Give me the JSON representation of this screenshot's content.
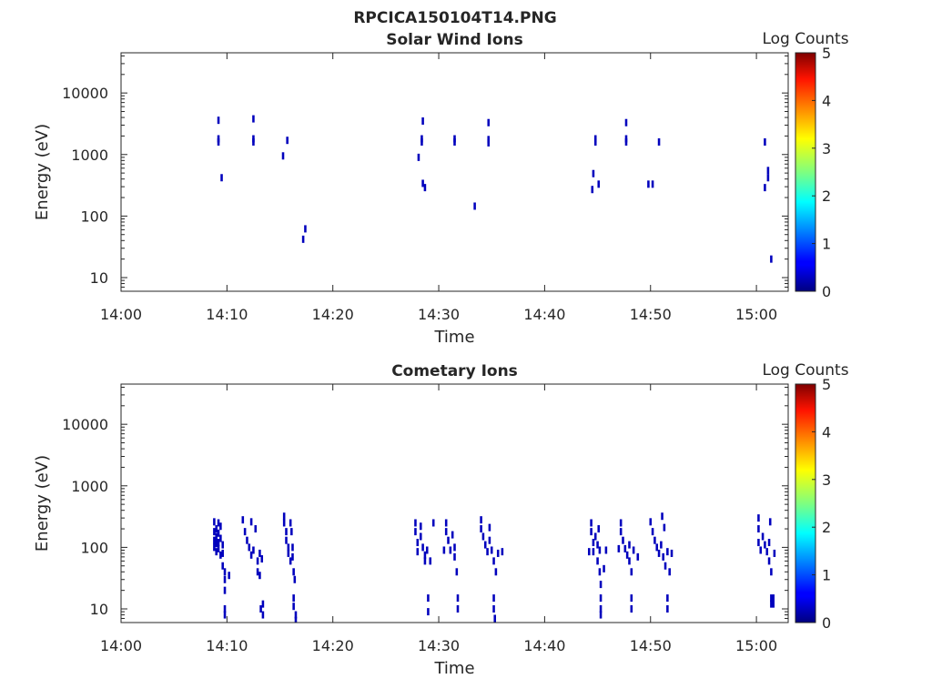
{
  "figure": {
    "title": "RPCICA150104T14.PNG"
  },
  "chart_data": [
    {
      "type": "heatmap",
      "title": "Solar Wind Ions",
      "xlabel": "Time",
      "ylabel": "Energy (eV)",
      "y_scale": "log",
      "xlim": [
        "14:00",
        "15:03"
      ],
      "ylim": [
        6,
        45000
      ],
      "x_ticks": [
        "14:00",
        "14:10",
        "14:20",
        "14:30",
        "14:40",
        "14:50",
        "15:00"
      ],
      "y_ticks": [
        {
          "value": 10,
          "label": "10"
        },
        {
          "value": 100,
          "label": "100"
        },
        {
          "value": 1000,
          "label": "1000"
        },
        {
          "value": 10000,
          "label": "10000"
        }
      ],
      "colorbar": {
        "label": "Log Counts",
        "range": [
          0,
          5
        ],
        "ticks": [
          "0",
          "1",
          "2",
          "3",
          "4",
          "5"
        ],
        "colormap": "jet"
      },
      "cells": [
        [
          9.2,
          1600,
          0.3
        ],
        [
          9.2,
          1800,
          0.3
        ],
        [
          9.2,
          3600,
          0.3
        ],
        [
          9.5,
          420,
          0.3
        ],
        [
          12.5,
          1600,
          0.3
        ],
        [
          12.5,
          1800,
          0.3
        ],
        [
          12.5,
          3800,
          0.3
        ],
        [
          15.3,
          950,
          0.3
        ],
        [
          15.7,
          1700,
          0.3
        ],
        [
          17.2,
          42,
          0.3
        ],
        [
          17.4,
          62,
          0.3
        ],
        [
          28.1,
          900,
          0.3
        ],
        [
          28.4,
          1600,
          0.3
        ],
        [
          28.4,
          1800,
          0.3
        ],
        [
          28.5,
          3500,
          0.3
        ],
        [
          28.5,
          340,
          0.3
        ],
        [
          28.7,
          290,
          0.3
        ],
        [
          31.5,
          1600,
          0.3
        ],
        [
          31.5,
          1800,
          0.3
        ],
        [
          33.4,
          145,
          0.3
        ],
        [
          34.7,
          1550,
          0.3
        ],
        [
          34.7,
          1750,
          0.3
        ],
        [
          34.7,
          3300,
          0.3
        ],
        [
          44.5,
          270,
          0.3
        ],
        [
          44.6,
          490,
          0.3
        ],
        [
          44.8,
          1600,
          0.3
        ],
        [
          44.8,
          1800,
          0.3
        ],
        [
          45.1,
          330,
          0.3
        ],
        [
          47.7,
          1600,
          0.3
        ],
        [
          47.7,
          1800,
          0.3
        ],
        [
          47.7,
          3300,
          0.3
        ],
        [
          49.8,
          330,
          0.3
        ],
        [
          50.2,
          330,
          0.3
        ],
        [
          50.8,
          1600,
          0.3
        ],
        [
          60.8,
          1600,
          0.3
        ],
        [
          60.8,
          290,
          0.3
        ],
        [
          61.1,
          420,
          0.3
        ],
        [
          61.1,
          550,
          0.3
        ],
        [
          61.4,
          20,
          0.3
        ]
      ]
    },
    {
      "type": "heatmap",
      "title": "Cometary Ions",
      "xlabel": "Time",
      "ylabel": "Energy (eV)",
      "y_scale": "log",
      "xlim": [
        "14:00",
        "15:03"
      ],
      "ylim": [
        6,
        45000
      ],
      "x_ticks": [
        "14:00",
        "14:10",
        "14:20",
        "14:30",
        "14:40",
        "14:50",
        "15:00"
      ],
      "y_ticks": [
        {
          "value": 10,
          "label": "10"
        },
        {
          "value": 100,
          "label": "100"
        },
        {
          "value": 1000,
          "label": "1000"
        },
        {
          "value": 10000,
          "label": "10000"
        }
      ],
      "colorbar": {
        "label": "Log Counts",
        "range": [
          0,
          5
        ],
        "ticks": [
          "0",
          "1",
          "2",
          "3",
          "4",
          "5"
        ],
        "colormap": "jet"
      },
      "cells": [
        [
          8.8,
          260,
          0.3
        ],
        [
          8.8,
          180,
          0.3
        ],
        [
          8.8,
          130,
          0.3
        ],
        [
          8.8,
          100,
          0.3
        ],
        [
          9.0,
          200,
          0.3
        ],
        [
          9.0,
          150,
          0.3
        ],
        [
          9.0,
          115,
          0.3
        ],
        [
          9.0,
          85,
          0.3
        ],
        [
          9.2,
          250,
          0.3
        ],
        [
          9.2,
          170,
          0.3
        ],
        [
          9.2,
          120,
          0.3
        ],
        [
          9.2,
          95,
          0.3
        ],
        [
          9.4,
          220,
          0.3
        ],
        [
          9.4,
          140,
          0.3
        ],
        [
          9.4,
          75,
          0.3
        ],
        [
          9.6,
          110,
          0.3
        ],
        [
          9.6,
          80,
          0.3
        ],
        [
          9.6,
          50,
          0.3
        ],
        [
          9.8,
          40,
          0.3
        ],
        [
          9.8,
          30,
          0.3
        ],
        [
          10.2,
          35,
          0.3
        ],
        [
          9.8,
          20,
          0.3
        ],
        [
          9.8,
          10,
          0.3
        ],
        [
          9.8,
          8,
          0.3
        ],
        [
          11.5,
          280,
          0.3
        ],
        [
          11.7,
          180,
          0.3
        ],
        [
          11.9,
          130,
          0.3
        ],
        [
          12.1,
          100,
          0.3
        ],
        [
          12.3,
          75,
          0.3
        ],
        [
          12.3,
          260,
          0.3
        ],
        [
          12.5,
          90,
          0.3
        ],
        [
          12.7,
          200,
          0.3
        ],
        [
          12.9,
          60,
          0.3
        ],
        [
          12.9,
          40,
          0.3
        ],
        [
          13.1,
          80,
          0.3
        ],
        [
          13.3,
          65,
          0.3
        ],
        [
          13.1,
          35,
          0.3
        ],
        [
          13.2,
          10,
          0.3
        ],
        [
          13.4,
          8,
          0.3
        ],
        [
          13.4,
          12,
          0.3
        ],
        [
          15.4,
          320,
          0.3
        ],
        [
          15.4,
          250,
          0.3
        ],
        [
          15.6,
          180,
          0.3
        ],
        [
          15.6,
          130,
          0.3
        ],
        [
          15.8,
          100,
          0.3
        ],
        [
          15.8,
          80,
          0.3
        ],
        [
          16.0,
          250,
          0.3
        ],
        [
          16.0,
          60,
          0.3
        ],
        [
          16.2,
          100,
          0.3
        ],
        [
          16.2,
          70,
          0.3
        ],
        [
          16.3,
          40,
          0.3
        ],
        [
          16.4,
          30,
          0.3
        ],
        [
          16.3,
          15,
          0.3
        ],
        [
          16.3,
          11,
          0.3
        ],
        [
          16.5,
          8,
          0.3
        ],
        [
          16.5,
          6.5,
          0.3
        ],
        [
          16.1,
          180,
          0.3
        ],
        [
          27.8,
          250,
          0.3
        ],
        [
          27.8,
          180,
          0.3
        ],
        [
          28.0,
          120,
          0.3
        ],
        [
          28.0,
          85,
          0.3
        ],
        [
          28.3,
          220,
          0.3
        ],
        [
          28.3,
          150,
          0.3
        ],
        [
          28.5,
          100,
          0.3
        ],
        [
          28.7,
          75,
          0.3
        ],
        [
          28.7,
          60,
          0.3
        ],
        [
          28.9,
          90,
          0.3
        ],
        [
          29.0,
          15,
          0.3
        ],
        [
          29.0,
          9,
          0.3
        ],
        [
          29.2,
          60,
          0.3
        ],
        [
          29.5,
          250,
          0.3
        ],
        [
          30.7,
          250,
          0.3
        ],
        [
          30.7,
          180,
          0.3
        ],
        [
          30.9,
          130,
          0.3
        ],
        [
          31.1,
          90,
          0.3
        ],
        [
          31.3,
          160,
          0.3
        ],
        [
          31.5,
          100,
          0.3
        ],
        [
          31.5,
          70,
          0.3
        ],
        [
          31.7,
          40,
          0.3
        ],
        [
          31.8,
          15,
          0.3
        ],
        [
          31.8,
          10,
          0.3
        ],
        [
          30.5,
          90,
          0.3
        ],
        [
          34.0,
          280,
          0.3
        ],
        [
          34.0,
          200,
          0.3
        ],
        [
          34.2,
          150,
          0.3
        ],
        [
          34.4,
          110,
          0.3
        ],
        [
          34.6,
          85,
          0.3
        ],
        [
          34.8,
          210,
          0.3
        ],
        [
          34.8,
          130,
          0.3
        ],
        [
          35.0,
          90,
          0.3
        ],
        [
          35.2,
          60,
          0.3
        ],
        [
          35.4,
          40,
          0.3
        ],
        [
          35.6,
          80,
          0.3
        ],
        [
          35.2,
          15,
          0.3
        ],
        [
          35.2,
          10,
          0.3
        ],
        [
          35.3,
          7,
          0.3
        ],
        [
          36.0,
          85,
          0.3
        ],
        [
          44.4,
          250,
          0.3
        ],
        [
          44.4,
          180,
          0.3
        ],
        [
          44.6,
          120,
          0.3
        ],
        [
          44.6,
          85,
          0.3
        ],
        [
          44.8,
          150,
          0.3
        ],
        [
          45.0,
          110,
          0.3
        ],
        [
          45.0,
          60,
          0.3
        ],
        [
          45.2,
          90,
          0.3
        ],
        [
          45.2,
          40,
          0.3
        ],
        [
          45.3,
          25,
          0.3
        ],
        [
          45.3,
          15,
          0.3
        ],
        [
          45.3,
          10,
          0.3
        ],
        [
          45.3,
          8,
          0.3
        ],
        [
          45.8,
          90,
          0.3
        ],
        [
          44.2,
          85,
          0.3
        ],
        [
          45.6,
          45,
          0.3
        ],
        [
          45.1,
          200,
          0.3
        ],
        [
          47.2,
          250,
          0.3
        ],
        [
          47.2,
          180,
          0.3
        ],
        [
          47.4,
          130,
          0.3
        ],
        [
          47.6,
          95,
          0.3
        ],
        [
          47.8,
          75,
          0.3
        ],
        [
          48.0,
          110,
          0.3
        ],
        [
          48.0,
          60,
          0.3
        ],
        [
          48.2,
          40,
          0.3
        ],
        [
          48.2,
          15,
          0.3
        ],
        [
          48.2,
          10,
          0.3
        ],
        [
          48.4,
          90,
          0.3
        ],
        [
          48.8,
          70,
          0.3
        ],
        [
          47.0,
          95,
          0.3
        ],
        [
          50.0,
          260,
          0.3
        ],
        [
          50.2,
          180,
          0.3
        ],
        [
          50.4,
          130,
          0.3
        ],
        [
          50.6,
          100,
          0.3
        ],
        [
          50.8,
          80,
          0.3
        ],
        [
          51.0,
          110,
          0.3
        ],
        [
          51.2,
          70,
          0.3
        ],
        [
          51.4,
          50,
          0.3
        ],
        [
          51.6,
          85,
          0.3
        ],
        [
          51.8,
          40,
          0.3
        ],
        [
          51.6,
          15,
          0.3
        ],
        [
          51.6,
          10,
          0.3
        ],
        [
          52.0,
          80,
          0.3
        ],
        [
          51.1,
          320,
          0.3
        ],
        [
          51.3,
          210,
          0.3
        ],
        [
          60.2,
          300,
          0.3
        ],
        [
          60.2,
          200,
          0.3
        ],
        [
          60.2,
          120,
          0.3
        ],
        [
          60.4,
          90,
          0.3
        ],
        [
          60.6,
          150,
          0.3
        ],
        [
          60.8,
          110,
          0.3
        ],
        [
          61.0,
          85,
          0.3
        ],
        [
          61.2,
          120,
          0.3
        ],
        [
          61.2,
          60,
          0.3
        ],
        [
          61.3,
          260,
          0.3
        ],
        [
          61.4,
          40,
          0.3
        ],
        [
          61.4,
          15,
          0.3
        ],
        [
          61.4,
          12,
          0.3
        ],
        [
          61.6,
          15,
          0.3
        ],
        [
          61.6,
          12,
          0.3
        ],
        [
          61.7,
          80,
          0.3
        ]
      ]
    }
  ]
}
